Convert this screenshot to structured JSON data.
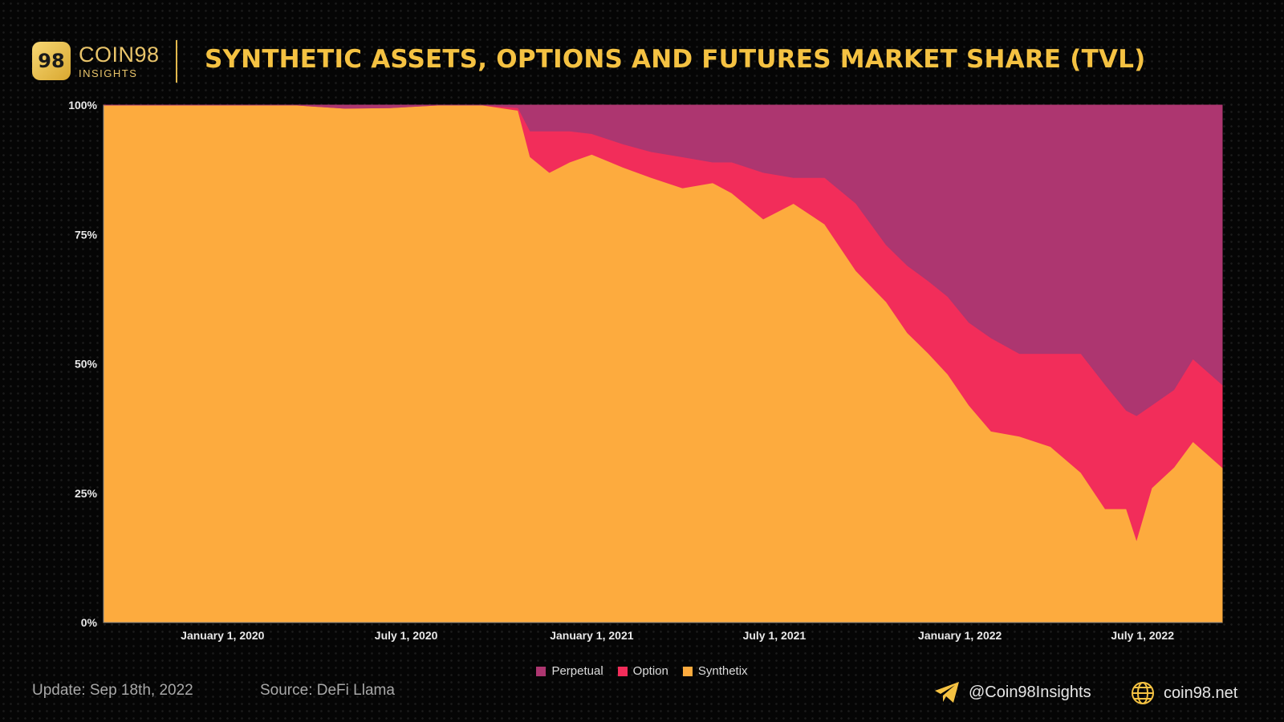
{
  "brand": {
    "name": "COIN98",
    "sub": "INSIGHTS",
    "badge": "98"
  },
  "title": "SYNTHETIC ASSETS, OPTIONS AND FUTURES MARKET SHARE (TVL)",
  "footer": {
    "update": "Update: Sep 18th, 2022",
    "source": "Source: DeFi Llama",
    "telegram": "@Coin98Insights",
    "website": "coin98.net"
  },
  "colors": {
    "perpetual": "#ad3670",
    "option": "#f22d5a",
    "synthetix": "#fdab3e",
    "accent": "#f5c242"
  },
  "chart_data": {
    "type": "area",
    "stacked": "percent",
    "x_tick_labels": [
      "January 1, 2020",
      "July 1, 2020",
      "January 1, 2021",
      "July 1, 2021",
      "January 1, 2022",
      "July 1, 2022"
    ],
    "x_tick_dates": [
      "2020-01-01",
      "2020-07-01",
      "2021-01-01",
      "2021-07-01",
      "2022-01-01",
      "2022-07-01"
    ],
    "y_tick_labels": [
      "0%",
      "25%",
      "50%",
      "75%",
      "100%"
    ],
    "y_tick_values": [
      0,
      25,
      50,
      75,
      100
    ],
    "ylim": [
      0,
      100
    ],
    "xlim": [
      "2019-09-05",
      "2022-09-18"
    ],
    "legend": "bottom",
    "series_order": [
      "Synthetix",
      "Option",
      "Perpetual"
    ],
    "series": [
      {
        "name": "Synthetix",
        "color": "#fdab3e",
        "x": [
          "2019-09-05",
          "2020-03-15",
          "2020-05-01",
          "2020-06-15",
          "2020-08-01",
          "2020-09-15",
          "2020-10-20",
          "2020-11-01",
          "2020-11-20",
          "2020-12-10",
          "2021-01-01",
          "2021-02-01",
          "2021-03-01",
          "2021-04-01",
          "2021-05-01",
          "2021-05-20",
          "2021-06-20",
          "2021-07-20",
          "2021-08-20",
          "2021-09-20",
          "2021-10-20",
          "2021-11-10",
          "2021-12-01",
          "2021-12-20",
          "2022-01-10",
          "2022-02-01",
          "2022-03-01",
          "2022-04-01",
          "2022-05-01",
          "2022-05-25",
          "2022-06-15",
          "2022-06-25",
          "2022-07-10",
          "2022-08-01",
          "2022-08-20",
          "2022-09-18"
        ],
        "values": [
          100,
          100,
          99.4,
          99.5,
          100,
          100,
          99,
          90,
          87,
          89,
          90.5,
          88,
          86,
          84,
          85,
          83,
          78,
          81,
          77,
          68,
          62,
          56,
          52,
          48,
          42,
          37,
          36,
          34,
          29,
          22,
          22,
          16,
          26,
          30,
          35,
          30
        ]
      },
      {
        "name": "Option",
        "color": "#f22d5a",
        "x": [
          "2019-09-05",
          "2020-03-15",
          "2020-05-01",
          "2020-06-15",
          "2020-08-01",
          "2020-09-15",
          "2020-10-20",
          "2020-11-01",
          "2020-11-20",
          "2020-12-10",
          "2021-01-01",
          "2021-02-01",
          "2021-03-01",
          "2021-04-01",
          "2021-05-01",
          "2021-05-20",
          "2021-06-20",
          "2021-07-20",
          "2021-08-20",
          "2021-09-20",
          "2021-10-20",
          "2021-11-10",
          "2021-12-01",
          "2021-12-20",
          "2022-01-10",
          "2022-02-01",
          "2022-03-01",
          "2022-04-01",
          "2022-05-01",
          "2022-05-25",
          "2022-06-15",
          "2022-06-25",
          "2022-07-10",
          "2022-08-01",
          "2022-08-20",
          "2022-09-18"
        ],
        "values": [
          0,
          0,
          0,
          0,
          0,
          0,
          0.5,
          5,
          8,
          6,
          4,
          4.5,
          5,
          6,
          4,
          6,
          9,
          5,
          9,
          13,
          11,
          13,
          14,
          15,
          16,
          18,
          16,
          18,
          23,
          24,
          19,
          24,
          16,
          15,
          16,
          16
        ]
      },
      {
        "name": "Perpetual",
        "color": "#ad3670",
        "x": [
          "2019-09-05",
          "2020-03-15",
          "2020-05-01",
          "2020-06-15",
          "2020-08-01",
          "2020-09-15",
          "2020-10-20",
          "2020-11-01",
          "2020-11-20",
          "2020-12-10",
          "2021-01-01",
          "2021-02-01",
          "2021-03-01",
          "2021-04-01",
          "2021-05-01",
          "2021-05-20",
          "2021-06-20",
          "2021-07-20",
          "2021-08-20",
          "2021-09-20",
          "2021-10-20",
          "2021-11-10",
          "2021-12-01",
          "2021-12-20",
          "2022-01-10",
          "2022-02-01",
          "2022-03-01",
          "2022-04-01",
          "2022-05-01",
          "2022-05-25",
          "2022-06-15",
          "2022-06-25",
          "2022-07-10",
          "2022-08-01",
          "2022-08-20",
          "2022-09-18"
        ],
        "values": [
          0,
          0,
          0.6,
          0.5,
          0,
          0,
          0.5,
          5,
          5,
          5,
          5.5,
          7.5,
          9,
          10,
          11,
          11,
          13,
          14,
          14,
          19,
          27,
          31,
          34,
          37,
          42,
          45,
          48,
          48,
          48,
          54,
          59,
          60,
          58,
          55,
          49,
          54
        ]
      }
    ]
  }
}
